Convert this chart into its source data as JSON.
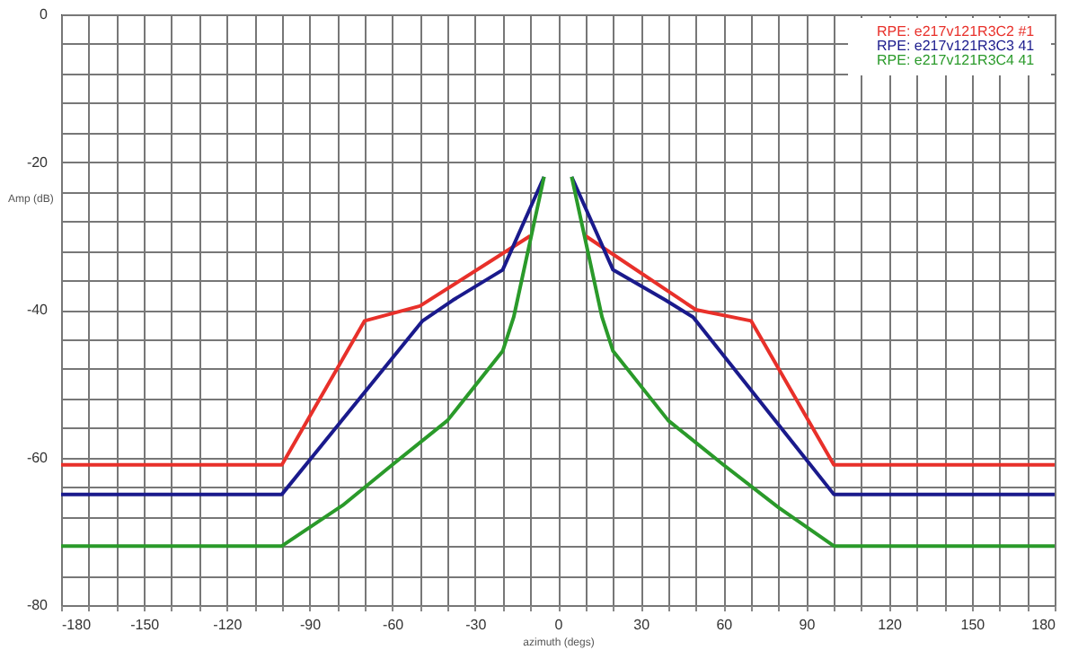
{
  "chart_data": {
    "type": "line",
    "xlabel": "azimuth (degs)",
    "ylabel": "Amp (dB)",
    "series": [
      {
        "name": "RPE: e217v121R3C2   #1",
        "color": "#e8302a",
        "x": [
          -180,
          -100,
          -70,
          -50,
          -10,
          -5,
          0,
          5,
          10,
          50,
          70,
          100,
          180
        ],
        "values": [
          -61,
          -61,
          -41.5,
          -39.5,
          -30,
          null,
          null,
          null,
          -30,
          -40,
          -41.5,
          -61,
          -61
        ]
      },
      {
        "name": "RPE: e217v121R3C3   41",
        "color": "#1a1a8c",
        "x": [
          -180,
          -100,
          -49,
          -38,
          -20,
          -5,
          0,
          5,
          20,
          39,
          49,
          100,
          180
        ],
        "values": [
          -65,
          -65,
          -41.5,
          -38.7,
          -34.6,
          -22,
          null,
          -22,
          -34.6,
          -38.7,
          -41,
          -65,
          -65
        ]
      },
      {
        "name": "RPE: e217v121R3C4   41",
        "color": "#2a9a2a",
        "x": [
          -180,
          -100,
          -78,
          -60,
          -40,
          -20,
          -16,
          -5,
          0,
          5,
          16,
          20,
          40,
          60,
          80,
          100,
          180
        ],
        "values": [
          -72,
          -72,
          -66.5,
          -61,
          -55,
          -45.6,
          -41,
          -22,
          null,
          -22,
          -41,
          -45.6,
          -55,
          -61,
          -66.8,
          -72,
          -72
        ]
      }
    ],
    "xlim": [
      -180,
      180
    ],
    "xticks": [
      -180,
      {
        "value": -170,
        "label": null
      },
      {
        "value": -160,
        "label": null
      },
      -150,
      {
        "value": -140,
        "label": null
      },
      {
        "value": -130,
        "label": null
      },
      -120,
      {
        "value": -110,
        "label": null
      },
      {
        "value": -100,
        "label": null
      },
      -90,
      {
        "value": -80,
        "label": null
      },
      {
        "value": -70,
        "label": null
      },
      -60,
      {
        "value": -50,
        "label": null
      },
      {
        "value": -40,
        "label": null
      },
      -30,
      {
        "value": -20,
        "label": null
      },
      {
        "value": -10,
        "label": null
      },
      0,
      {
        "value": 10,
        "label": null
      },
      {
        "value": 20,
        "label": null
      },
      30,
      {
        "value": 40,
        "label": null
      },
      {
        "value": 50,
        "label": null
      },
      60,
      {
        "value": 70,
        "label": null
      },
      {
        "value": 80,
        "label": null
      },
      90,
      {
        "value": 100,
        "label": null
      },
      {
        "value": 110,
        "label": null
      },
      120,
      {
        "value": 130,
        "label": null
      },
      {
        "value": 140,
        "label": null
      },
      150,
      {
        "value": 160,
        "label": null
      },
      {
        "value": 170,
        "label": null
      },
      180
    ],
    "ylim": [
      -80,
      0
    ],
    "yticks": [
      -80,
      {
        "value": -76,
        "label": null
      },
      {
        "value": -72,
        "label": null
      },
      {
        "value": -68,
        "label": null
      },
      {
        "value": -64,
        "label": null
      },
      -60,
      {
        "value": -56,
        "label": null
      },
      {
        "value": -52,
        "label": null
      },
      {
        "value": -48,
        "label": null
      },
      {
        "value": -44,
        "label": null
      },
      -40,
      {
        "value": -36,
        "label": null
      },
      {
        "value": -32,
        "label": null
      },
      {
        "value": -28,
        "label": null
      },
      {
        "value": -24,
        "label": null
      },
      -20,
      {
        "value": -16,
        "label": null
      },
      {
        "value": -12,
        "label": null
      },
      {
        "value": -8,
        "label": null
      },
      {
        "value": -4,
        "label": null
      },
      0
    ],
    "grid": true,
    "legend": "top right",
    "marker": "none",
    "line_style": "solid"
  }
}
